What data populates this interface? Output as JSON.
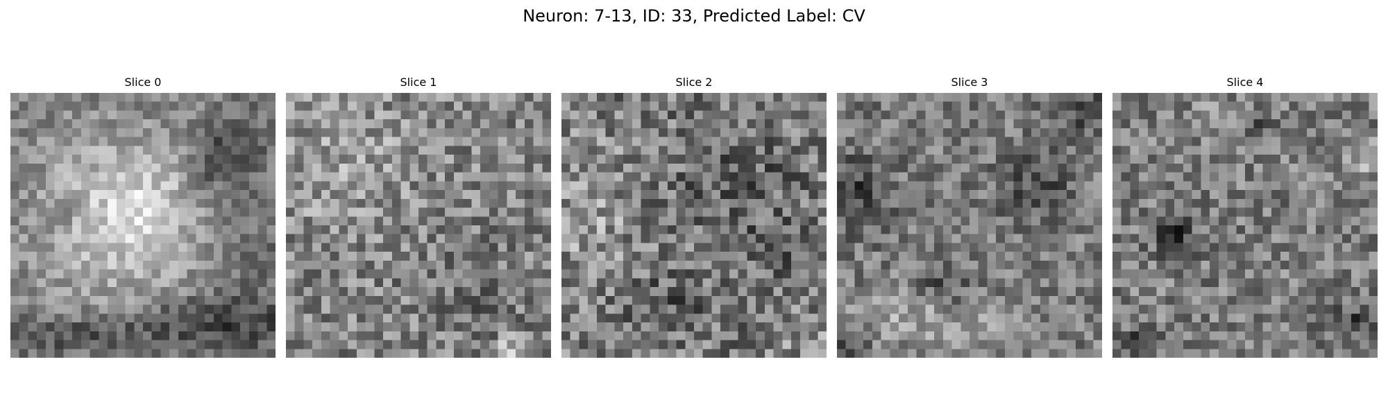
{
  "figure": {
    "title": "Neuron: 7-13, ID: 33, Predicted Label: CV"
  },
  "slices": [
    {
      "label": "Slice 0",
      "description_icon": "grayscale-noise-image",
      "pattern": "round-bright-cell-with-dark-lower-border"
    },
    {
      "label": "Slice 1",
      "description_icon": "grayscale-noise-image",
      "pattern": "light-textured-field"
    },
    {
      "label": "Slice 2",
      "description_icon": "grayscale-noise-image",
      "pattern": "medium-gray-dark-clusters"
    },
    {
      "label": "Slice 3",
      "description_icon": "grayscale-noise-image",
      "pattern": "gray-field-dark-patches"
    },
    {
      "label": "Slice 4",
      "description_icon": "grayscale-noise-image",
      "pattern": "gray-field-scattered-dark-spots"
    }
  ],
  "colors": {
    "background": "#ffffff",
    "text": "#000000",
    "colormap": "gray"
  }
}
